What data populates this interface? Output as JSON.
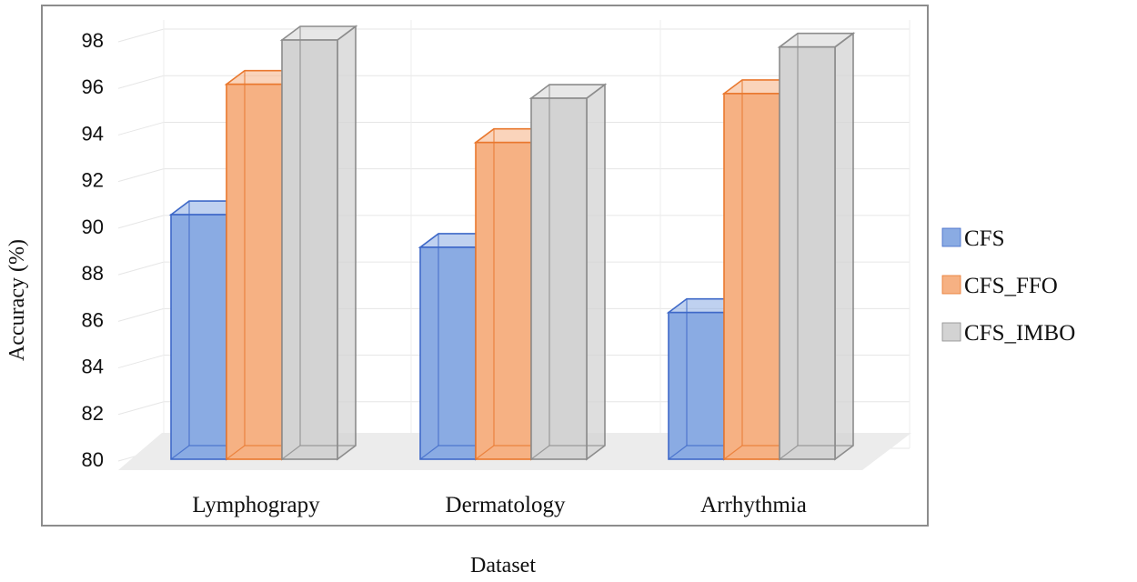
{
  "chart_data": {
    "type": "bar",
    "title": "",
    "xlabel": "Dataset",
    "ylabel": "Accuracy (%)",
    "ylim": [
      80,
      98
    ],
    "yticks": [
      80,
      82,
      84,
      86,
      88,
      90,
      92,
      94,
      96,
      98
    ],
    "grid": true,
    "legend_position": "right",
    "categories": [
      "Lymphograpy",
      "Dermatology",
      "Arrhythmia"
    ],
    "series": [
      {
        "name": "CFS",
        "values": [
          90.5,
          89.1,
          86.3
        ],
        "color": "#8aabe3",
        "edge": "#3f69c8"
      },
      {
        "name": "CFS_FFO",
        "values": [
          96.1,
          93.6,
          95.7
        ],
        "color": "#f6b183",
        "edge": "#e9782e"
      },
      {
        "name": "CFS_IMBO",
        "values": [
          98.0,
          95.5,
          97.7
        ],
        "color": "#d3d3d3",
        "edge": "#8c8c8c"
      }
    ]
  }
}
